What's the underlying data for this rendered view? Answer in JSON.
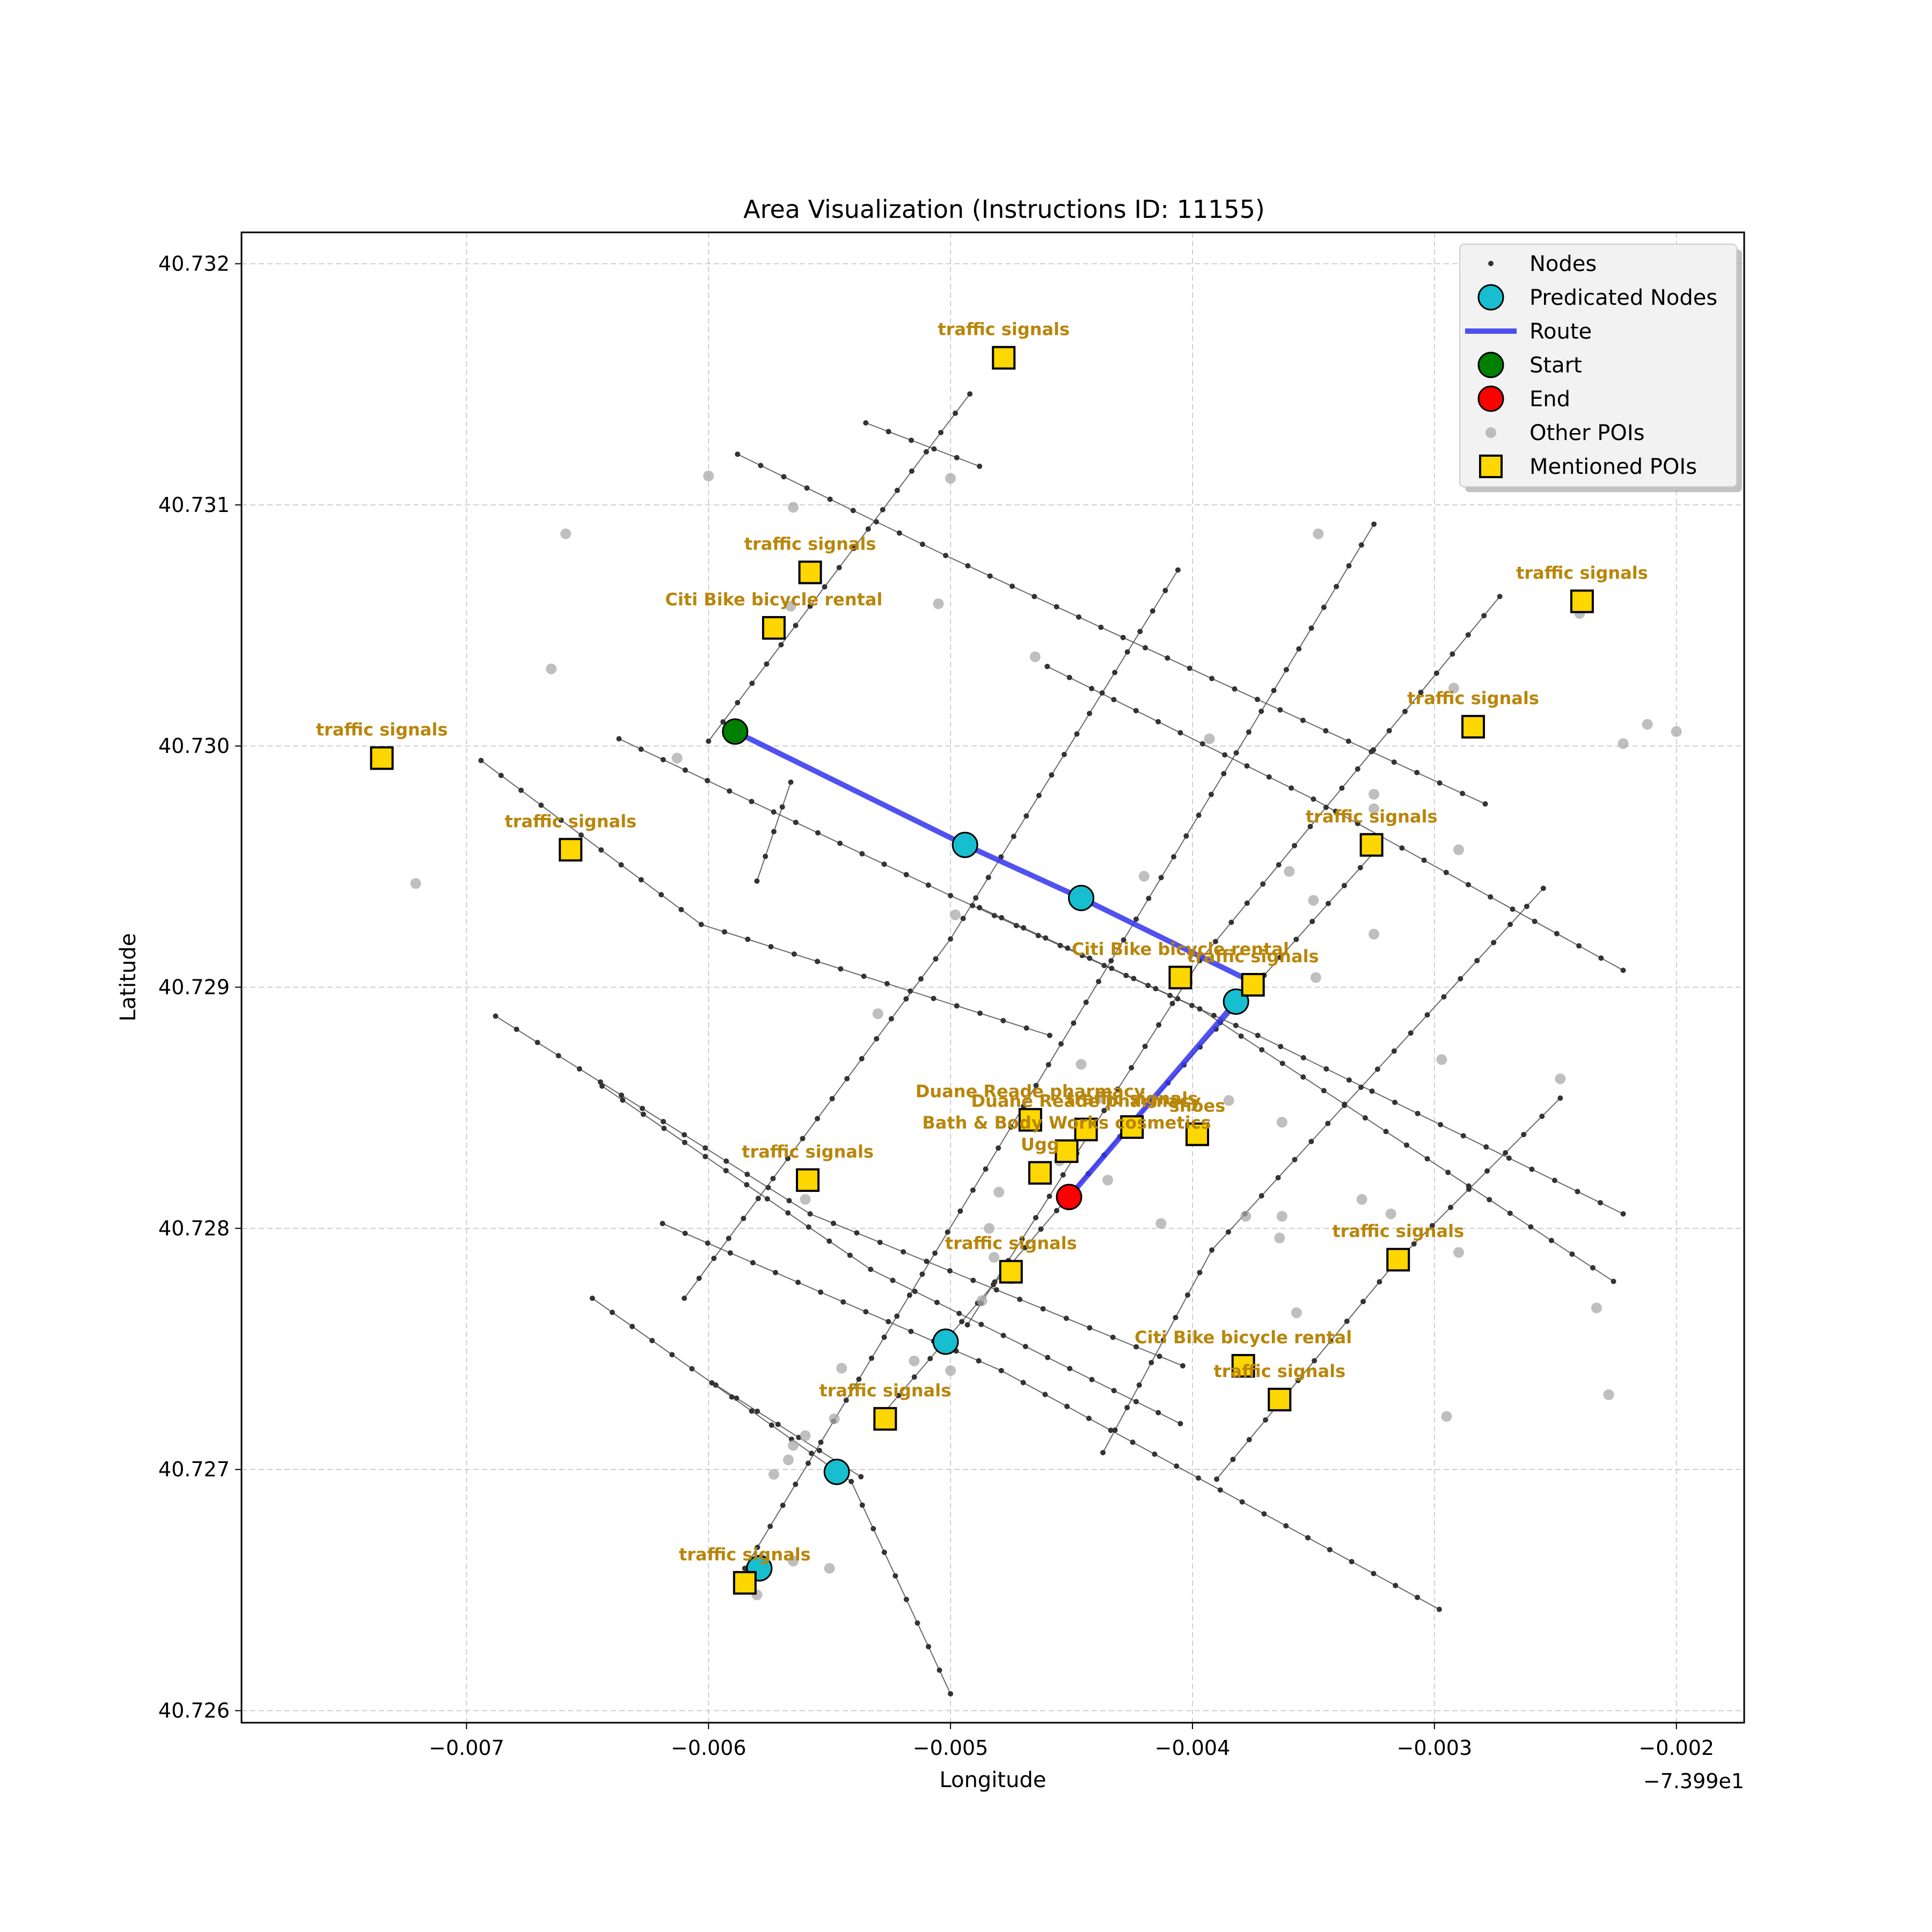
{
  "chart_data": {
    "type": "scatter",
    "title": "Area Visualization (Instructions ID: 11155)",
    "xlabel": "Longitude",
    "ylabel": "Latitude",
    "offset_text": "−7.399e1",
    "xlim": [
      -0.00793,
      -0.00172
    ],
    "ylim": [
      40.72595,
      40.73213
    ],
    "x_ticks": [
      -0.007,
      -0.006,
      -0.005,
      -0.004,
      -0.003,
      -0.002
    ],
    "x_tick_labels": [
      "−0.007",
      "−0.006",
      "−0.005",
      "−0.004",
      "−0.003",
      "−0.002"
    ],
    "y_ticks": [
      40.726,
      40.727,
      40.728,
      40.729,
      40.73,
      40.731,
      40.732
    ],
    "y_tick_labels": [
      "40.726",
      "40.727",
      "40.728",
      "40.729",
      "40.730",
      "40.731",
      "40.732"
    ],
    "grid": true,
    "legend_position": "upper right",
    "legend": [
      {
        "label": "Nodes",
        "kind": "node",
        "color": "#333333"
      },
      {
        "label": "Predicated Nodes",
        "kind": "circle",
        "color": "#17becf"
      },
      {
        "label": "Route",
        "kind": "line",
        "color": "#3333ee"
      },
      {
        "label": "Start",
        "kind": "circle",
        "color": "#008000"
      },
      {
        "label": "End",
        "kind": "circle",
        "color": "#ff0000"
      },
      {
        "label": "Other POIs",
        "kind": "poi",
        "color": "#aaaaaa"
      },
      {
        "label": "Mentioned POIs",
        "kind": "square",
        "color": "#ffd700"
      }
    ],
    "streets": [
      [
        [
          -0.00588,
          40.73121
        ],
        [
          -0.00502,
          40.73079
        ],
        [
          -0.00392,
          40.73028
        ],
        [
          -0.00279,
          40.72976
        ]
      ],
      [
        [
          -0.00637,
          40.73003
        ],
        [
          -0.005,
          40.72938
        ],
        [
          -0.00373,
          40.7288
        ],
        [
          -0.00222,
          40.72806
        ]
      ],
      [
        [
          -0.00619,
          40.72802
        ],
        [
          -0.00479,
          40.72741
        ],
        [
          -0.00298,
          40.72642
        ]
      ],
      [
        [
          -0.00644,
          40.72859
        ],
        [
          -0.00533,
          40.72783
        ],
        [
          -0.00405,
          40.72719
        ]
      ],
      [
        [
          -0.0046,
          40.73033
        ],
        [
          -0.0035,
          40.72978
        ],
        [
          -0.00222,
          40.72907
        ]
      ],
      [
        [
          -0.00488,
          40.72933
        ],
        [
          -0.00397,
          40.72891
        ],
        [
          -0.00226,
          40.72778
        ]
      ],
      [
        [
          -0.00688,
          40.72888
        ],
        [
          -0.00558,
          40.72806
        ],
        [
          -0.00404,
          40.72743
        ]
      ],
      [
        [
          -0.00597,
          40.72735
        ],
        [
          -0.00537,
          40.72697
        ]
      ],
      [
        [
          -0.00694,
          40.72994
        ],
        [
          -0.00603,
          40.72926
        ],
        [
          -0.00459,
          40.7288
        ]
      ],
      [
        [
          -0.00648,
          40.72771
        ],
        [
          -0.00541,
          40.72695
        ],
        [
          -0.005,
          40.72607
        ]
      ],
      [
        [
          -0.00535,
          40.73134
        ],
        [
          -0.00488,
          40.73116
        ]
      ],
      [
        [
          -0.0058,
          40.72944
        ],
        [
          -0.00566,
          40.72985
        ]
      ],
      [
        [
          -0.006,
          40.73002
        ],
        [
          -0.00492,
          40.73146
        ]
      ],
      [
        [
          -0.0061,
          40.72771
        ],
        [
          -0.005,
          40.7292
        ],
        [
          -0.00406,
          40.73073
        ]
      ],
      [
        [
          -0.00585,
          40.72659
        ],
        [
          -0.00475,
          40.72842
        ],
        [
          -0.00325,
          40.73092
        ]
      ],
      [
        [
          -0.00493,
          40.7276
        ],
        [
          -0.00397,
          40.72911
        ],
        [
          -0.00273,
          40.73062
        ]
      ],
      [
        [
          -0.00528,
          40.72723
        ],
        [
          -0.0043,
          40.72838
        ],
        [
          -0.00324,
          40.72957
        ]
      ],
      [
        [
          -0.00437,
          40.72707
        ],
        [
          -0.00392,
          40.72791
        ],
        [
          -0.00255,
          40.72941
        ]
      ],
      [
        [
          -0.0039,
          40.72696
        ],
        [
          -0.00316,
          40.72786
        ],
        [
          -0.00248,
          40.72854
        ]
      ]
    ],
    "other_pois": [
      [
        -0.00659,
        40.73088
      ],
      [
        -0.00665,
        40.73032
      ],
      [
        -0.006,
        40.73112
      ],
      [
        -0.00565,
        40.73099
      ],
      [
        -0.005,
        40.73111
      ],
      [
        -0.00566,
        40.73058
      ],
      [
        -0.00505,
        40.73059
      ],
      [
        -0.00465,
        40.73037
      ],
      [
        -0.00613,
        40.72995
      ],
      [
        -0.00721,
        40.72943
      ],
      [
        -0.00363,
        40.72844
      ],
      [
        -0.0053,
        40.72889
      ],
      [
        -0.0042,
        40.72946
      ],
      [
        -0.00385,
        40.72853
      ],
      [
        -0.0048,
        40.72815
      ],
      [
        -0.0056,
        40.72812
      ],
      [
        -0.005,
        40.72741
      ],
      [
        -0.00364,
        40.72796
      ],
      [
        -0.00363,
        40.72805
      ],
      [
        -0.0035,
        40.72936
      ],
      [
        -0.00349,
        40.72904
      ],
      [
        -0.00325,
        40.72922
      ],
      [
        -0.00325,
        40.7298
      ],
      [
        -0.00325,
        40.72974
      ],
      [
        -0.0029,
        40.72957
      ],
      [
        -0.0036,
        40.72948
      ],
      [
        -0.00446,
        40.72868
      ],
      [
        -0.00475,
        40.72779
      ],
      [
        -0.00484,
        40.728
      ],
      [
        -0.00482,
        40.72788
      ],
      [
        -0.00487,
        40.7277
      ],
      [
        -0.00438,
        40.72854
      ],
      [
        -0.00455,
        40.72828
      ],
      [
        -0.00435,
        40.7282
      ],
      [
        -0.00515,
        40.72745
      ],
      [
        -0.00545,
        40.72742
      ],
      [
        -0.00548,
        40.72721
      ],
      [
        -0.0056,
        40.72714
      ],
      [
        -0.00565,
        40.7271
      ],
      [
        -0.00567,
        40.72704
      ],
      [
        -0.00573,
        40.72698
      ],
      [
        -0.00578,
        40.72663
      ],
      [
        -0.0055,
        40.72659
      ],
      [
        -0.0058,
        40.72648
      ],
      [
        -0.00565,
        40.72662
      ],
      [
        -0.00378,
        40.72805
      ],
      [
        -0.00357,
        40.72765
      ],
      [
        -0.0033,
        40.72812
      ],
      [
        -0.00318,
        40.72806
      ],
      [
        -0.0029,
        40.7279
      ],
      [
        -0.00297,
        40.7287
      ],
      [
        -0.00228,
        40.72731
      ],
      [
        -0.00233,
        40.72767
      ],
      [
        -0.00248,
        40.72862
      ],
      [
        -0.00212,
        40.73009
      ],
      [
        -0.00222,
        40.73001
      ],
      [
        -0.002,
        40.73006
      ],
      [
        -0.0024,
        40.73055
      ],
      [
        -0.00292,
        40.73024
      ],
      [
        -0.00348,
        40.73088
      ],
      [
        -0.00295,
        40.72722
      ],
      [
        -0.00498,
        40.7293
      ],
      [
        -0.00393,
        40.73003
      ],
      [
        -0.00413,
        40.72802
      ]
    ],
    "route": [
      [
        -0.00589,
        40.73006
      ],
      [
        -0.00494,
        40.72959
      ],
      [
        -0.00446,
        40.72937
      ],
      [
        -0.00375,
        40.72902
      ],
      [
        -0.00382,
        40.72894
      ],
      [
        -0.00451,
        40.72813
      ]
    ],
    "predicated_nodes": [
      [
        -0.00494,
        40.72959
      ],
      [
        -0.00446,
        40.72937
      ],
      [
        -0.00382,
        40.72894
      ],
      [
        -0.00502,
        40.72753
      ],
      [
        -0.00547,
        40.72699
      ],
      [
        -0.00579,
        40.72659
      ]
    ],
    "start": [
      -0.00589,
      40.73006
    ],
    "end": [
      -0.00451,
      40.72813
    ],
    "mentioned_pois": [
      {
        "x": -0.00478,
        "y": 40.73161,
        "label": "traffic signals"
      },
      {
        "x": -0.00558,
        "y": 40.73072,
        "label": "traffic signals"
      },
      {
        "x": -0.00573,
        "y": 40.73049,
        "label": "Citi Bike bicycle rental"
      },
      {
        "x": -0.00735,
        "y": 40.72995,
        "label": "traffic signals"
      },
      {
        "x": -0.00657,
        "y": 40.72957,
        "label": "traffic signals"
      },
      {
        "x": -0.00239,
        "y": 40.7306,
        "label": "traffic signals"
      },
      {
        "x": -0.00284,
        "y": 40.73008,
        "label": "traffic signals"
      },
      {
        "x": -0.00326,
        "y": 40.72959,
        "label": "traffic signals"
      },
      {
        "x": -0.00405,
        "y": 40.72904,
        "label": "Citi Bike bicycle rental"
      },
      {
        "x": -0.00375,
        "y": 40.72901,
        "label": "traffic signals"
      },
      {
        "x": -0.00467,
        "y": 40.72845,
        "label": "Duane Reade pharmacy"
      },
      {
        "x": -0.00444,
        "y": 40.72841,
        "label": "Duane Reade pharmacy"
      },
      {
        "x": -0.00425,
        "y": 40.72842,
        "label": "traffic signals"
      },
      {
        "x": -0.00398,
        "y": 40.72839,
        "label": "shoes"
      },
      {
        "x": -0.00452,
        "y": 40.72832,
        "label": "Bath & Body Works cosmetics"
      },
      {
        "x": -0.00463,
        "y": 40.72823,
        "label": "Ugg"
      },
      {
        "x": -0.00559,
        "y": 40.7282,
        "label": "traffic signals"
      },
      {
        "x": -0.00475,
        "y": 40.72782,
        "label": "traffic signals"
      },
      {
        "x": -0.00315,
        "y": 40.72787,
        "label": "traffic signals"
      },
      {
        "x": -0.00379,
        "y": 40.72743,
        "label": "Citi Bike bicycle rental"
      },
      {
        "x": -0.00364,
        "y": 40.72729,
        "label": "traffic signals"
      },
      {
        "x": -0.00527,
        "y": 40.72721,
        "label": "traffic signals"
      },
      {
        "x": -0.00585,
        "y": 40.72653,
        "label": "traffic signals"
      }
    ]
  }
}
